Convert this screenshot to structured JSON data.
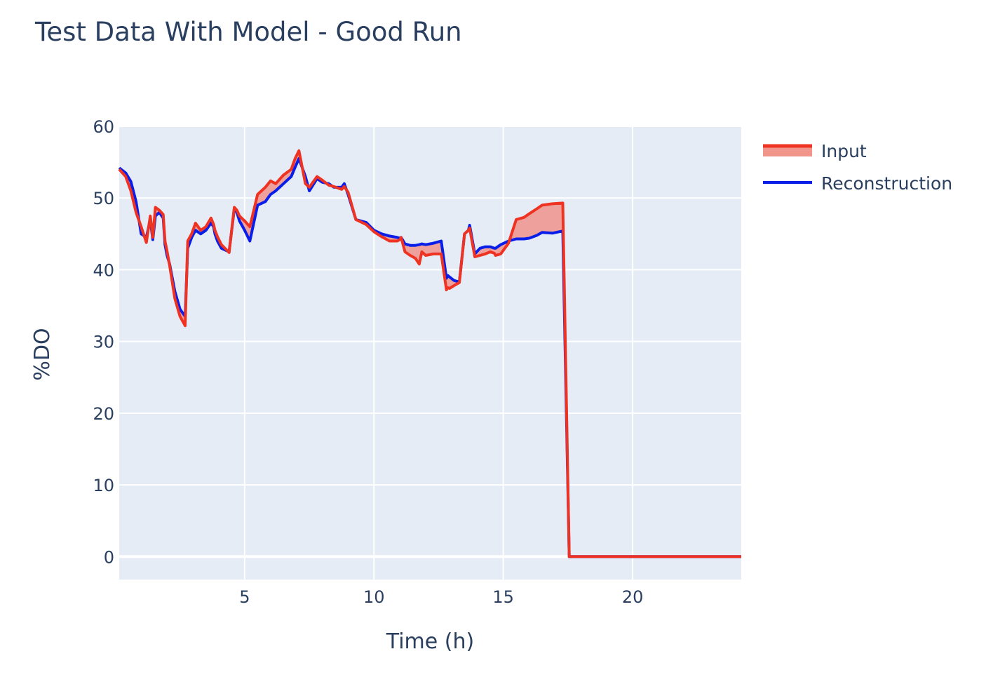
{
  "chart_data": {
    "type": "line",
    "title": "Test Data With Model - Good Run",
    "xlabel": "Time (h)",
    "ylabel": "%DO",
    "xlim": [
      0.15,
      24.2
    ],
    "ylim": [
      -3.2,
      60
    ],
    "xticks": [
      5,
      10,
      15,
      20
    ],
    "yticks": [
      0,
      10,
      20,
      30,
      40,
      50,
      60
    ],
    "grid": true,
    "legend_position": "top-right",
    "colors": {
      "plot_bg": "#e5ecf6",
      "grid": "#ffffff",
      "input": "#ee3322",
      "fill": "#f0948c",
      "reconstruction": "#0a1eea"
    },
    "series": [
      {
        "name": "Input",
        "x": [
          0.15,
          0.4,
          0.6,
          0.8,
          1.0,
          1.2,
          1.35,
          1.45,
          1.55,
          1.7,
          1.85,
          1.92,
          2.0,
          2.1,
          2.3,
          2.5,
          2.7,
          2.8,
          2.95,
          3.1,
          3.3,
          3.5,
          3.7,
          3.8,
          3.85,
          3.95,
          4.1,
          4.4,
          4.6,
          4.7,
          4.8,
          5.0,
          5.2,
          5.5,
          5.8,
          6.0,
          6.2,
          6.5,
          6.8,
          6.95,
          7.1,
          7.35,
          7.5,
          7.8,
          8.0,
          8.25,
          8.45,
          8.75,
          8.85,
          9.0,
          9.3,
          9.7,
          10.0,
          10.3,
          10.6,
          10.9,
          11.0,
          11.05,
          11.2,
          11.4,
          11.6,
          11.75,
          11.85,
          12.0,
          12.3,
          12.6,
          12.8,
          12.85,
          12.92,
          13.1,
          13.3,
          13.5,
          13.65,
          13.7,
          13.9,
          14.1,
          14.3,
          14.5,
          14.65,
          14.7,
          14.9,
          15.2,
          15.5,
          15.8,
          16.0,
          16.3,
          16.5,
          16.9,
          17.3,
          17.55,
          17.6,
          17.75,
          18.0,
          18.3,
          18.6,
          18.9,
          19.2,
          19.35,
          19.5,
          19.55,
          19.6,
          24.2
        ],
        "y": [
          54,
          53,
          51,
          48,
          46,
          43.8,
          47.5,
          44.5,
          48.7,
          48.3,
          47.7,
          44,
          42.6,
          40.6,
          36,
          33.5,
          32.2,
          44,
          45,
          46.5,
          45.5,
          46,
          47.2,
          46.3,
          45.5,
          44.6,
          43.5,
          42.4,
          48.7,
          48.3,
          47.5,
          46.8,
          46,
          50.5,
          51.5,
          52.4,
          52,
          53.2,
          54,
          55.5,
          56.6,
          52,
          51.5,
          53,
          52.5,
          51.8,
          51.6,
          51.2,
          51.6,
          50.8,
          47,
          46.3,
          45.3,
          44.6,
          44,
          44,
          44.2,
          44.5,
          42.5,
          42,
          41.6,
          40.8,
          42.5,
          42,
          42.2,
          42.2,
          37.2,
          37.5,
          37.4,
          37.8,
          38.2,
          45,
          45.5,
          45.8,
          41.8,
          42,
          42.2,
          42.5,
          42.3,
          42,
          42.2,
          43.7,
          47,
          47.3,
          47.8,
          48.5,
          49,
          49.2,
          49.3,
          0,
          0,
          0,
          0,
          0,
          0,
          0,
          0,
          0,
          0,
          0,
          0,
          0
        ],
        "__note_x_limits": ""
      },
      {
        "name": "Reconstruction",
        "x": [
          0.15,
          0.4,
          0.6,
          0.8,
          1.0,
          1.2,
          1.35,
          1.45,
          1.55,
          1.7,
          1.85,
          1.92,
          2.0,
          2.1,
          2.3,
          2.5,
          2.7,
          2.8,
          2.95,
          3.1,
          3.3,
          3.5,
          3.7,
          3.8,
          3.85,
          3.95,
          4.1,
          4.4,
          4.6,
          4.7,
          4.8,
          5.0,
          5.2,
          5.5,
          5.8,
          6.0,
          6.2,
          6.5,
          6.8,
          6.95,
          7.1,
          7.35,
          7.5,
          7.8,
          8.0,
          8.25,
          8.45,
          8.75,
          8.85,
          9.0,
          9.3,
          9.7,
          10.0,
          10.3,
          10.6,
          10.9,
          11.0,
          11.05,
          11.2,
          11.4,
          11.6,
          11.75,
          11.85,
          12.0,
          12.3,
          12.6,
          12.8,
          12.85,
          12.92,
          13.1,
          13.3,
          13.5,
          13.65,
          13.7,
          13.9,
          14.1,
          14.3,
          14.5,
          14.65,
          14.7,
          14.9,
          15.2,
          15.5,
          15.8,
          16.0,
          16.3,
          16.5,
          16.9,
          17.3,
          17.55,
          17.6,
          17.75,
          18.0,
          18.3,
          18.6,
          18.9,
          19.2,
          19.35,
          19.5,
          19.55,
          19.6,
          24.2
        ],
        "y": [
          54.2,
          53.5,
          52.3,
          49.5,
          45,
          44.5,
          47,
          44.2,
          47.5,
          48,
          47.2,
          43.5,
          42,
          40.8,
          37,
          34.5,
          33.5,
          43,
          44.5,
          45.5,
          45,
          45.5,
          46.5,
          46,
          45,
          44,
          43,
          42.5,
          48.5,
          48,
          46.8,
          45.5,
          44,
          49,
          49.5,
          50.5,
          51,
          52,
          53,
          54.3,
          55.5,
          53,
          51,
          52.7,
          52.2,
          52,
          51.5,
          51.5,
          52,
          50.5,
          47,
          46.6,
          45.5,
          45,
          44.7,
          44.5,
          44.4,
          44.5,
          43.6,
          43.4,
          43.4,
          43.5,
          43.6,
          43.5,
          43.7,
          44,
          38.8,
          39.2,
          39,
          38.5,
          38.3,
          45,
          45.5,
          46.2,
          42.2,
          43,
          43.2,
          43.2,
          43,
          43,
          43.5,
          44,
          44.3,
          44.3,
          44.4,
          44.8,
          45.2,
          45.1,
          45.4,
          0,
          0,
          0,
          0,
          0,
          0,
          0,
          0,
          0,
          0,
          0,
          0,
          0
        ]
      }
    ],
    "legend": [
      "Input",
      "Reconstruction"
    ]
  }
}
